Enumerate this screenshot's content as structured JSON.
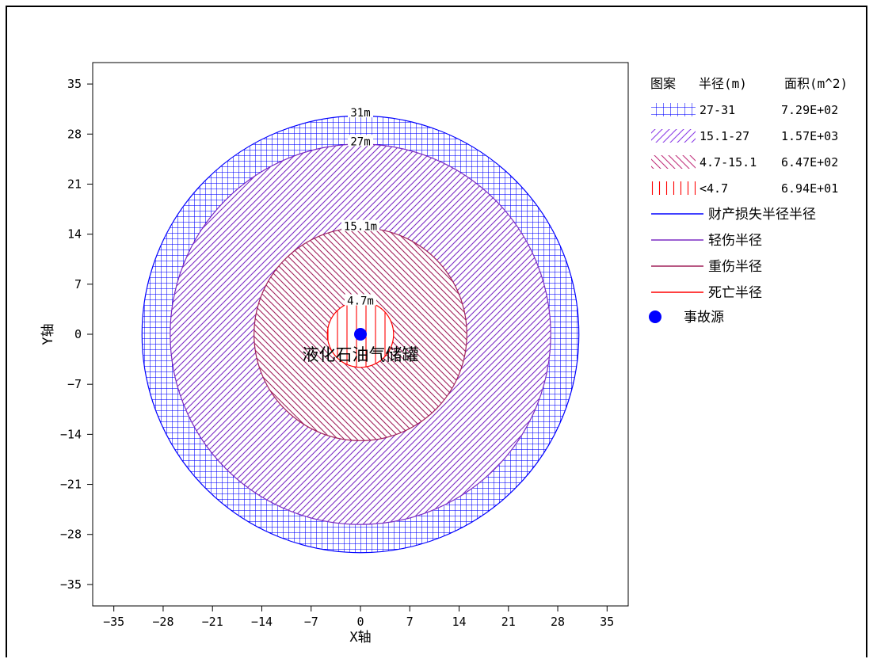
{
  "chart_data": {
    "type": "other",
    "xlabel": "X轴",
    "ylabel": "Y轴",
    "xlim": [
      -38,
      38
    ],
    "ylim": [
      -38,
      38
    ],
    "xticks": [
      -35,
      -28,
      -21,
      -14,
      -7,
      0,
      7,
      14,
      21,
      28,
      35
    ],
    "yticks": [
      35,
      28,
      21,
      14,
      7,
      0,
      -7,
      -14,
      -21,
      -28,
      -35
    ],
    "source": {
      "x": 0,
      "y": 0,
      "label": "液化石油气储罐",
      "color": "#0000ff"
    },
    "circles": [
      {
        "radius": 31,
        "label": "31m",
        "color": "#0000ff",
        "hatch": "grid"
      },
      {
        "radius": 27,
        "label": "27m",
        "color": "#7b2bc4",
        "hatch": "slash"
      },
      {
        "radius": 15.1,
        "label": "15.1m",
        "color": "#a0205a",
        "hatch": "backslash"
      },
      {
        "radius": 4.7,
        "label": "4.7m",
        "color": "#ff0000",
        "hatch": "vertical"
      }
    ],
    "legend": {
      "headers": [
        "图案",
        "半径(m)",
        "面积(m^2)"
      ],
      "rows": [
        {
          "range": "27-31",
          "area": "7.29E+02",
          "color": "#0000ff",
          "hatch": "grid"
        },
        {
          "range": "15.1-27",
          "area": "1.57E+03",
          "color": "#8a3ce6",
          "hatch": "slash"
        },
        {
          "range": "4.7-15.1",
          "area": "6.47E+02",
          "color": "#c0307a",
          "hatch": "backslash"
        },
        {
          "range": "<4.7",
          "area": "6.94E+01",
          "color": "#ff0000",
          "hatch": "vertical"
        }
      ],
      "lines": [
        {
          "label": "财产损失半径半径",
          "color": "#0000ff"
        },
        {
          "label": "轻伤半径",
          "color": "#7b2bc4"
        },
        {
          "label": "重伤半径",
          "color": "#a0205a"
        },
        {
          "label": "死亡半径",
          "color": "#ff0000"
        }
      ],
      "source_label": "事故源"
    }
  }
}
